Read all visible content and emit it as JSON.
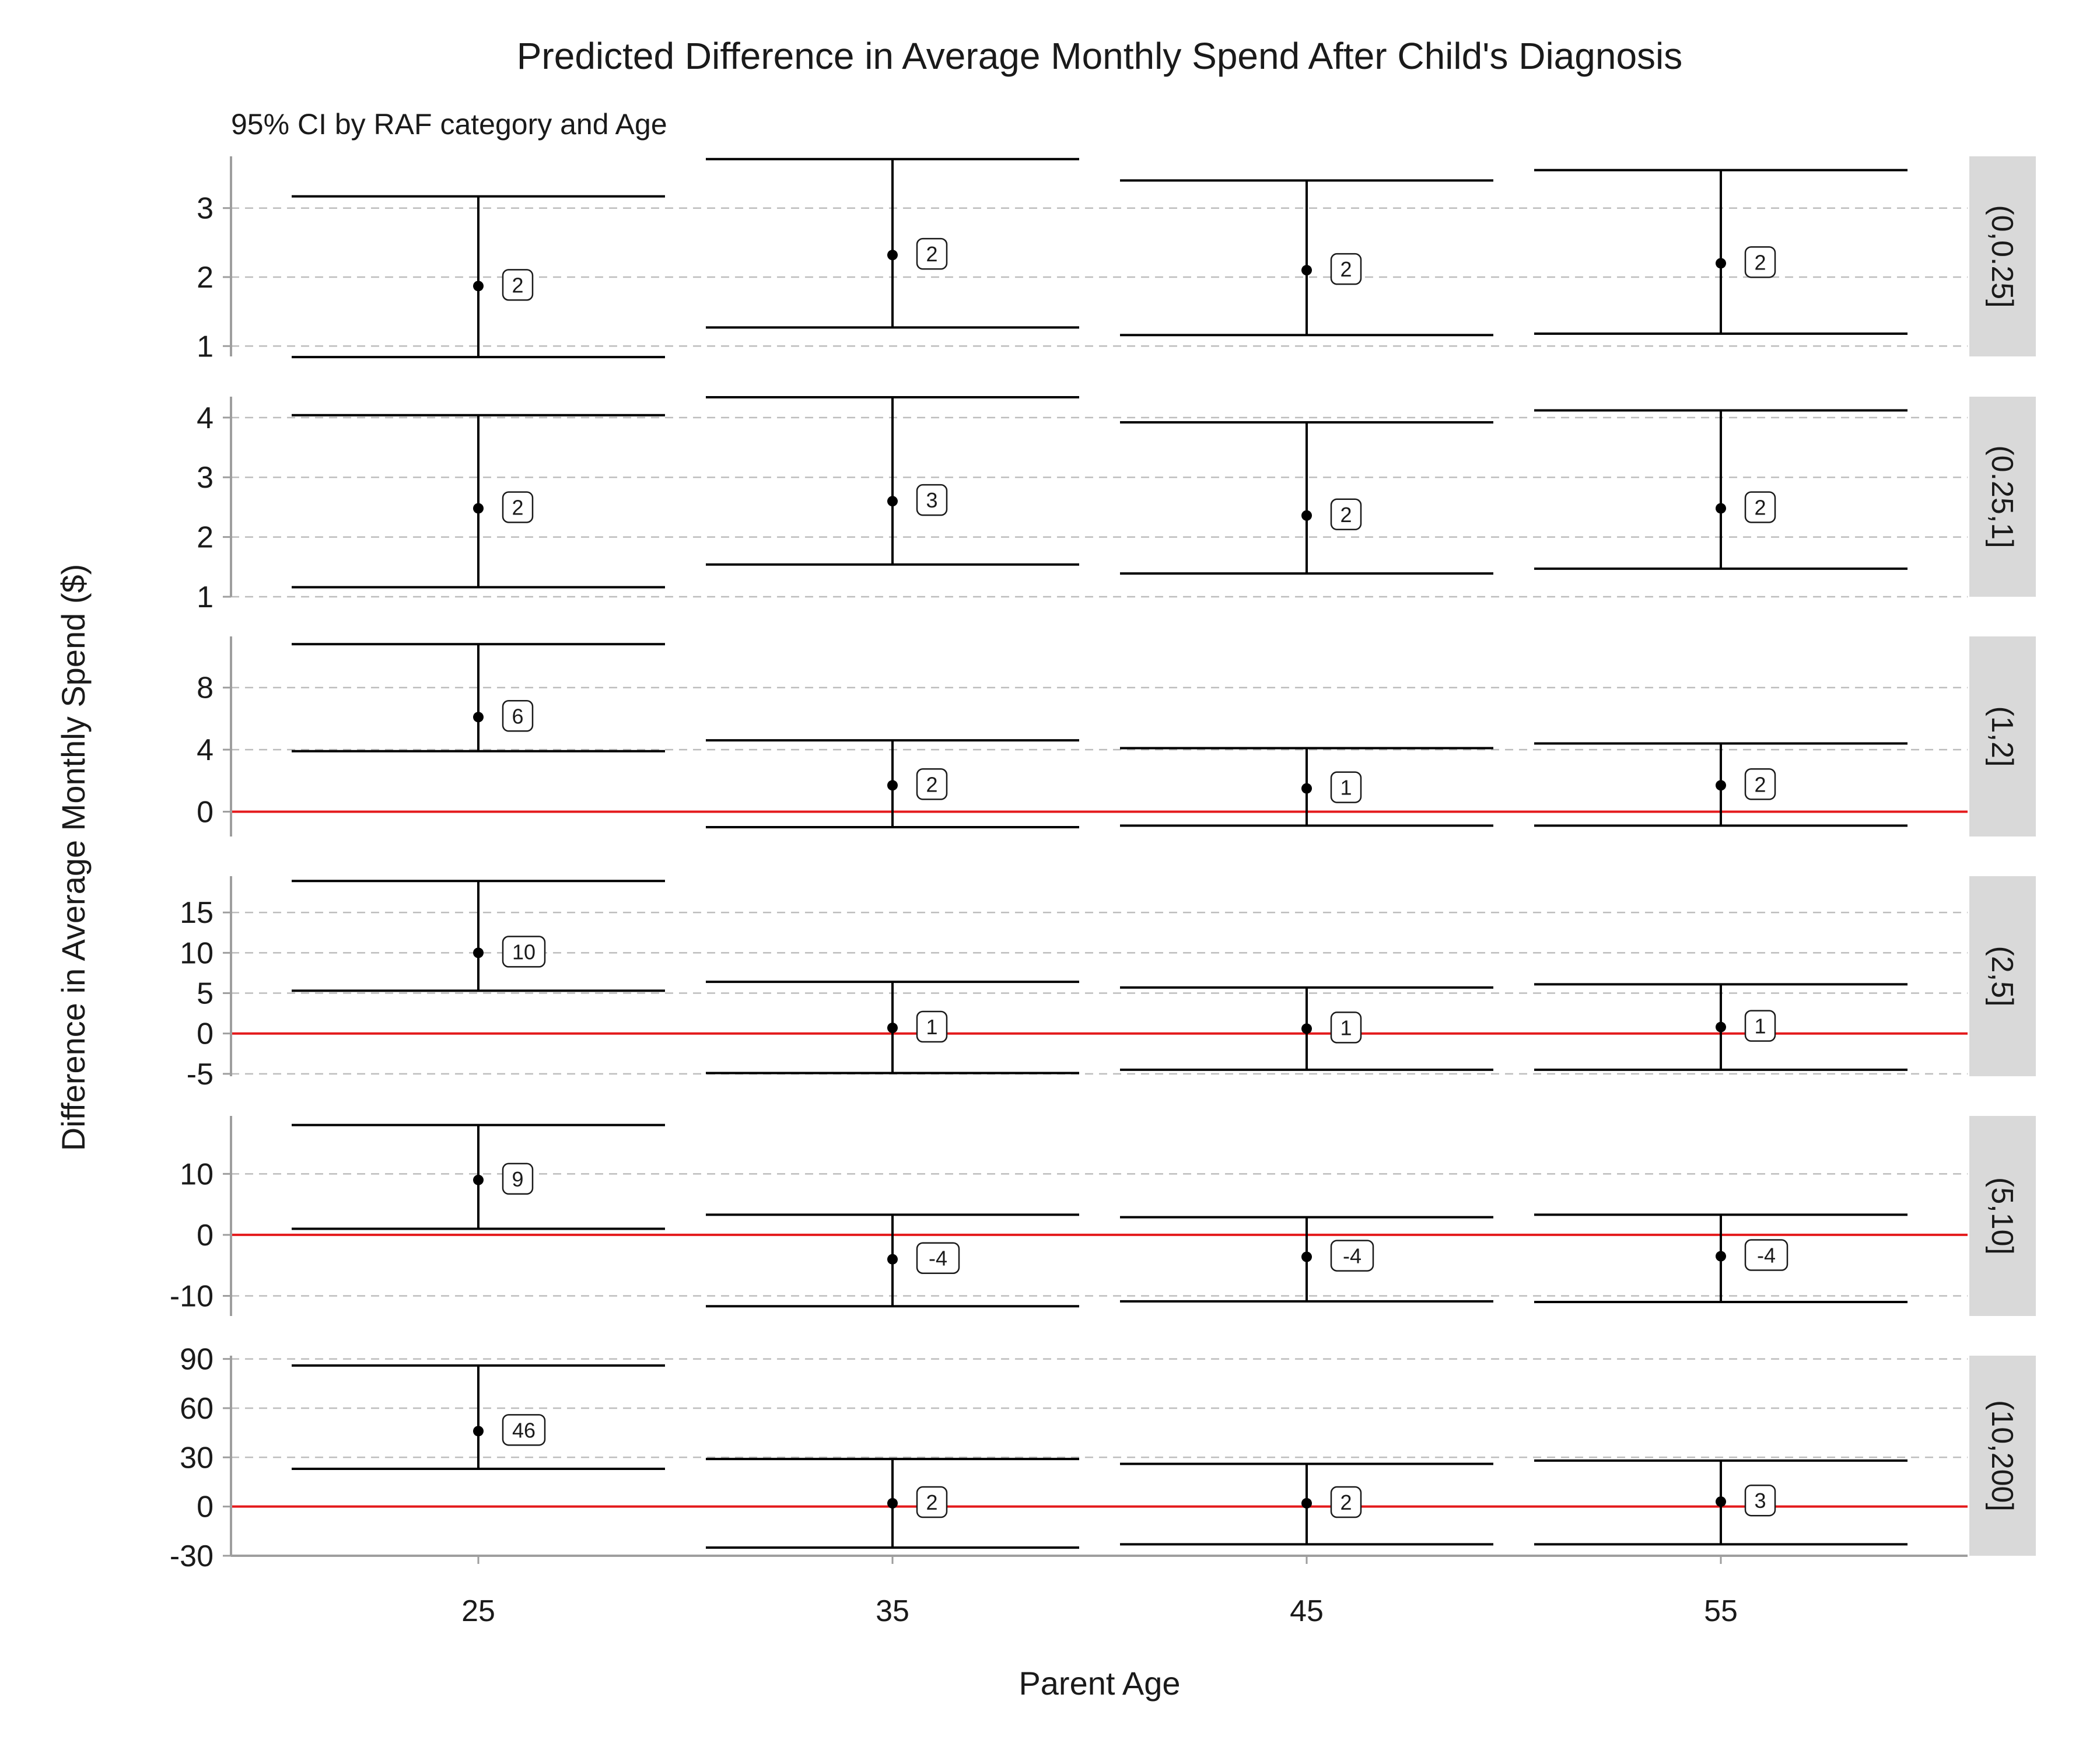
{
  "chart_data": {
    "type": "errorbar",
    "title": "Predicted Difference in Average Monthly Spend After Child's Diagnosis",
    "subtitle": "95% CI by RAF category and Age",
    "xlabel": "Parent Age",
    "ylabel": "Difference in Average Monthly Spend ($)",
    "x": [
      25,
      35,
      45,
      55
    ],
    "x_tick_labels": [
      "25",
      "35",
      "45",
      "55"
    ],
    "grid": "horizontal dashed",
    "reference_line": {
      "y": 0,
      "color": "#e41a1c"
    },
    "colors": {
      "errorbar": "#000000",
      "point": "#000000",
      "reference": "#e41a1c",
      "grid": "#bdbdbd",
      "axis": "#9e9e9e",
      "strip_bg": "#d9d9d9"
    },
    "panels": [
      {
        "facet": "(0,0.25]",
        "ylim": [
          0.85,
          3.75
        ],
        "y_ticks": [
          1,
          2,
          3
        ],
        "y_tick_labels": [
          "1",
          "2",
          "3"
        ],
        "points": [
          {
            "x": 25,
            "y": 1.87,
            "lower": 0.84,
            "upper": 3.17,
            "label": "2"
          },
          {
            "x": 35,
            "y": 2.32,
            "lower": 1.27,
            "upper": 3.71,
            "label": "2"
          },
          {
            "x": 45,
            "y": 2.1,
            "lower": 1.16,
            "upper": 3.4,
            "label": "2"
          },
          {
            "x": 55,
            "y": 2.2,
            "lower": 1.18,
            "upper": 3.55,
            "label": "2"
          }
        ]
      },
      {
        "facet": "(0.25,1]",
        "ylim": [
          1.0,
          4.35
        ],
        "y_ticks": [
          1,
          2,
          3,
          4
        ],
        "y_tick_labels": [
          "1",
          "2",
          "3",
          "4"
        ],
        "points": [
          {
            "x": 25,
            "y": 2.48,
            "lower": 1.16,
            "upper": 4.04,
            "label": "2"
          },
          {
            "x": 35,
            "y": 2.6,
            "lower": 1.54,
            "upper": 4.34,
            "label": "3"
          },
          {
            "x": 45,
            "y": 2.36,
            "lower": 1.39,
            "upper": 3.92,
            "label": "2"
          },
          {
            "x": 55,
            "y": 2.48,
            "lower": 1.47,
            "upper": 4.12,
            "label": "2"
          }
        ]
      },
      {
        "facet": "(1,2]",
        "ylim": [
          -1.6,
          11.3
        ],
        "y_ticks": [
          0,
          4,
          8
        ],
        "y_tick_labels": [
          "0",
          "4",
          "8"
        ],
        "points": [
          {
            "x": 25,
            "y": 6.1,
            "lower": 3.9,
            "upper": 10.8,
            "label": "6"
          },
          {
            "x": 35,
            "y": 1.7,
            "lower": -1.0,
            "upper": 4.6,
            "label": "2"
          },
          {
            "x": 45,
            "y": 1.5,
            "lower": -0.9,
            "upper": 4.1,
            "label": "1"
          },
          {
            "x": 55,
            "y": 1.7,
            "lower": -0.9,
            "upper": 4.4,
            "label": "2"
          }
        ]
      },
      {
        "facet": "(2,5]",
        "ylim": [
          -5.3,
          19.5
        ],
        "y_ticks": [
          -5,
          0,
          5,
          10,
          15
        ],
        "y_tick_labels": [
          "-5",
          "0",
          "5",
          "10",
          "15"
        ],
        "points": [
          {
            "x": 25,
            "y": 10.0,
            "lower": 5.3,
            "upper": 18.9,
            "label": "10"
          },
          {
            "x": 35,
            "y": 0.7,
            "lower": -4.9,
            "upper": 6.4,
            "label": "1"
          },
          {
            "x": 45,
            "y": 0.6,
            "lower": -4.5,
            "upper": 5.7,
            "label": "1"
          },
          {
            "x": 55,
            "y": 0.8,
            "lower": -4.5,
            "upper": 6.1,
            "label": "1"
          }
        ]
      },
      {
        "facet": "(5,10]",
        "ylim": [
          -13.3,
          19.5
        ],
        "y_ticks": [
          -10,
          0,
          10
        ],
        "y_tick_labels": [
          "-10",
          "0",
          "10"
        ],
        "points": [
          {
            "x": 25,
            "y": 9.0,
            "lower": 1.0,
            "upper": 18.0,
            "label": "9"
          },
          {
            "x": 35,
            "y": -4.0,
            "lower": -11.7,
            "upper": 3.3,
            "label": "-4"
          },
          {
            "x": 45,
            "y": -3.6,
            "lower": -10.9,
            "upper": 2.9,
            "label": "-4"
          },
          {
            "x": 55,
            "y": -3.5,
            "lower": -11.0,
            "upper": 3.3,
            "label": "-4"
          }
        ]
      },
      {
        "facet": "(10,200]",
        "ylim": [
          -30,
          92
        ],
        "y_ticks": [
          -30,
          0,
          30,
          60,
          90
        ],
        "y_tick_labels": [
          "-30",
          "0",
          "30",
          "60",
          "90"
        ],
        "points": [
          {
            "x": 25,
            "y": 46.0,
            "lower": 23.0,
            "upper": 86.0,
            "label": "46"
          },
          {
            "x": 35,
            "y": 2.0,
            "lower": -25.0,
            "upper": 29.0,
            "label": "2"
          },
          {
            "x": 45,
            "y": 2.0,
            "lower": -23.0,
            "upper": 26.0,
            "label": "2"
          },
          {
            "x": 55,
            "y": 3.0,
            "lower": -23.0,
            "upper": 28.0,
            "label": "3"
          }
        ]
      }
    ]
  }
}
